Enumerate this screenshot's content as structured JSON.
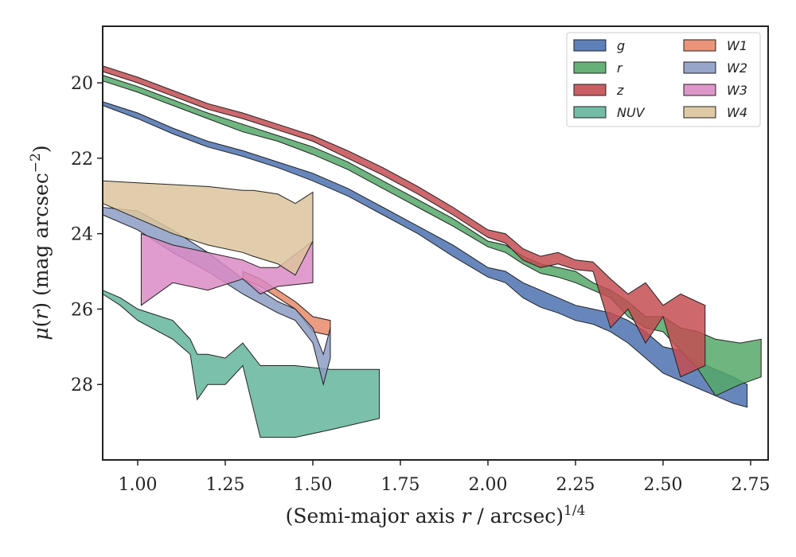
{
  "chart_data": {
    "type": "area",
    "title": "",
    "xlabel": "(Semi-major axis r / arcsec)^1/4",
    "xlabel_parts": {
      "prefix": "(Semi-major axis ",
      "var": "r",
      "suffix": " / arcsec)",
      "sup": "1/4"
    },
    "ylabel": "μ(r) (mag arcsec^-2)",
    "ylabel_parts": {
      "mu": "μ",
      "open": "(",
      "var": "r",
      "close": ") (mag arcsec",
      "sup": "−2",
      "end": ")"
    },
    "xlim": [
      0.9,
      2.8
    ],
    "ylim": [
      30.0,
      18.5
    ],
    "y_inverted": true,
    "xticks": [
      "1.00",
      "1.25",
      "1.50",
      "1.75",
      "2.00",
      "2.25",
      "2.50",
      "2.75"
    ],
    "yticks": [
      "20",
      "22",
      "24",
      "26",
      "28"
    ],
    "grid": false,
    "legend": {
      "placement": "top-right",
      "columns": 2
    },
    "series": [
      {
        "name": "g",
        "color": "#4c72b0",
        "x": [
          0.9,
          1.0,
          1.1,
          1.2,
          1.3,
          1.4,
          1.5,
          1.6,
          1.7,
          1.8,
          1.9,
          2.0,
          2.05,
          2.1,
          2.15,
          2.2,
          2.25,
          2.3,
          2.35,
          2.4,
          2.45,
          2.5,
          2.55,
          2.6,
          2.65,
          2.7,
          2.74
        ],
        "lower": [
          20.5,
          20.8,
          21.2,
          21.55,
          21.8,
          22.1,
          22.4,
          22.8,
          23.3,
          23.8,
          24.3,
          24.9,
          25.0,
          25.3,
          25.5,
          25.7,
          25.9,
          26.0,
          26.1,
          26.3,
          26.6,
          27.0,
          27.1,
          27.4,
          27.6,
          27.8,
          28.0
        ],
        "upper": [
          20.6,
          20.95,
          21.35,
          21.7,
          21.95,
          22.25,
          22.6,
          23.0,
          23.5,
          24.0,
          24.6,
          25.15,
          25.3,
          25.7,
          25.95,
          26.1,
          26.3,
          26.4,
          26.6,
          26.9,
          27.3,
          27.7,
          27.9,
          28.1,
          28.3,
          28.5,
          28.6
        ]
      },
      {
        "name": "r",
        "color": "#55a868",
        "x": [
          0.9,
          1.0,
          1.1,
          1.2,
          1.3,
          1.4,
          1.5,
          1.6,
          1.7,
          1.8,
          1.9,
          2.0,
          2.05,
          2.1,
          2.15,
          2.2,
          2.25,
          2.3,
          2.35,
          2.4,
          2.45,
          2.5,
          2.55,
          2.6,
          2.65,
          2.72,
          2.78
        ],
        "lower": [
          19.8,
          20.1,
          20.45,
          20.8,
          21.1,
          21.4,
          21.7,
          22.1,
          22.6,
          23.1,
          23.6,
          24.2,
          24.3,
          24.6,
          24.8,
          24.9,
          25.0,
          25.3,
          25.5,
          25.8,
          26.2,
          26.2,
          26.5,
          26.6,
          26.8,
          26.9,
          26.8
        ],
        "upper": [
          19.95,
          20.25,
          20.6,
          20.95,
          21.3,
          21.55,
          21.9,
          22.3,
          22.8,
          23.3,
          23.8,
          24.35,
          24.5,
          24.8,
          25.05,
          25.15,
          25.3,
          25.5,
          25.7,
          26.2,
          26.5,
          26.6,
          27.1,
          27.6,
          28.3,
          28.0,
          27.8
        ]
      },
      {
        "name": "z",
        "color": "#c44e52",
        "x": [
          0.9,
          1.0,
          1.1,
          1.2,
          1.3,
          1.4,
          1.5,
          1.6,
          1.7,
          1.8,
          1.9,
          2.0,
          2.05,
          2.1,
          2.15,
          2.2,
          2.25,
          2.3,
          2.35,
          2.4,
          2.45,
          2.5,
          2.55,
          2.62
        ],
        "lower": [
          19.55,
          19.85,
          20.2,
          20.55,
          20.8,
          21.1,
          21.4,
          21.8,
          22.25,
          22.75,
          23.3,
          23.9,
          24.0,
          24.4,
          24.6,
          24.5,
          24.7,
          24.75,
          25.2,
          25.6,
          25.3,
          25.9,
          25.6,
          25.9
        ],
        "upper": [
          19.7,
          20.0,
          20.35,
          20.7,
          20.95,
          21.25,
          21.55,
          22.0,
          22.45,
          22.95,
          23.5,
          24.1,
          24.25,
          24.7,
          24.9,
          24.8,
          24.95,
          25.0,
          26.5,
          26.0,
          26.9,
          26.2,
          27.8,
          27.5
        ]
      },
      {
        "name": "NUV",
        "color": "#64b59b",
        "x": [
          0.9,
          0.95,
          1.0,
          1.1,
          1.15,
          1.17,
          1.2,
          1.25,
          1.3,
          1.35,
          1.45,
          1.55,
          1.69
        ],
        "lower": [
          25.5,
          25.7,
          26.0,
          26.3,
          26.8,
          27.2,
          27.2,
          27.3,
          26.9,
          27.5,
          27.5,
          27.6,
          27.6
        ],
        "upper": [
          25.6,
          25.9,
          26.3,
          26.8,
          27.2,
          28.4,
          28.0,
          28.0,
          27.5,
          29.4,
          29.4,
          29.2,
          28.9
        ]
      },
      {
        "name": "W1",
        "color": "#e8896a",
        "x": [
          1.3,
          1.35,
          1.4,
          1.45,
          1.5,
          1.55
        ],
        "lower": [
          25.0,
          25.2,
          25.5,
          25.8,
          26.2,
          26.3
        ],
        "upper": [
          25.2,
          25.4,
          25.7,
          26.0,
          26.6,
          26.7
        ]
      },
      {
        "name": "W2",
        "color": "#8c9cc4",
        "x": [
          0.9,
          1.0,
          1.1,
          1.2,
          1.3,
          1.4,
          1.45,
          1.5,
          1.53,
          1.55
        ],
        "lower": [
          23.3,
          23.4,
          23.9,
          24.5,
          25.2,
          25.8,
          26.0,
          26.5,
          27.2,
          26.5
        ],
        "upper": [
          23.5,
          23.9,
          24.5,
          25.0,
          25.6,
          26.1,
          26.3,
          26.9,
          28.0,
          27.3
        ]
      },
      {
        "name": "W3",
        "color": "#da8bc3",
        "x": [
          1.01,
          1.1,
          1.2,
          1.3,
          1.35,
          1.4,
          1.5
        ],
        "lower": [
          24.0,
          24.3,
          24.5,
          24.7,
          24.9,
          24.9,
          24.2
        ],
        "upper": [
          25.9,
          25.3,
          25.5,
          25.2,
          25.6,
          25.4,
          25.3
        ]
      },
      {
        "name": "W4",
        "color": "#dcc49c",
        "x": [
          0.9,
          1.0,
          1.1,
          1.2,
          1.3,
          1.33,
          1.4,
          1.45,
          1.5
        ],
        "lower": [
          22.6,
          22.65,
          22.7,
          22.75,
          22.85,
          22.85,
          22.95,
          23.2,
          22.9
        ],
        "upper": [
          23.2,
          23.6,
          24.0,
          24.3,
          24.5,
          24.6,
          24.8,
          25.1,
          24.2
        ]
      }
    ]
  }
}
